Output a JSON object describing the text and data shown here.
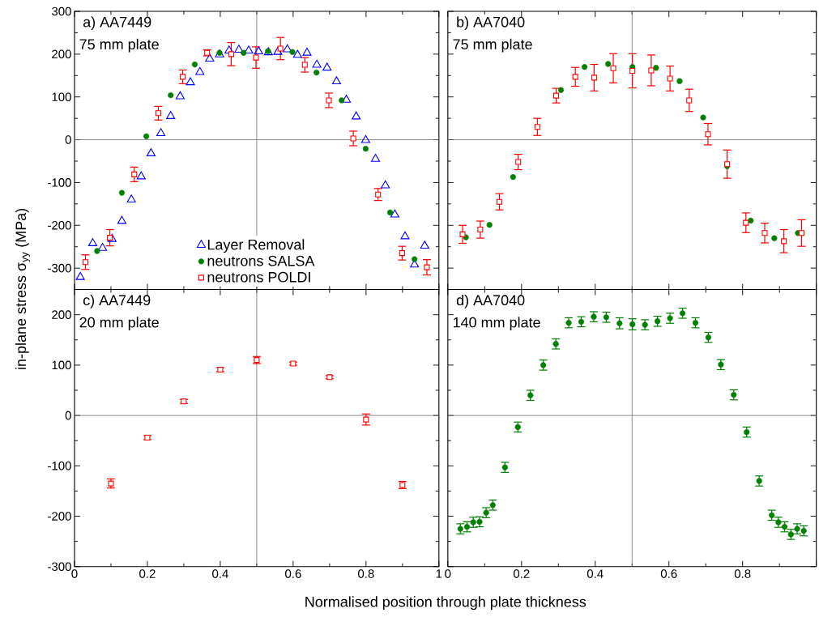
{
  "chart_data": [
    {
      "type": "scatter",
      "title": "a) AA7449",
      "subtitle": "75 mm plate",
      "ylabel": "in-plane stress σ$_{yy}$ (MPa)",
      "xlim": [
        0,
        1
      ],
      "ylim": [
        -350,
        300
      ],
      "xticks": [
        0,
        0.2,
        0.4,
        0.6,
        0.8,
        1
      ],
      "yticks": [
        -300,
        -200,
        -100,
        0,
        100,
        200,
        300
      ],
      "tick_labels": "y",
      "legend": "bottom",
      "ref_lines": [
        {
          "axis": "x",
          "value": 0.5,
          "color": "#707070"
        },
        {
          "axis": "y",
          "value": 0,
          "color": "#707070"
        }
      ],
      "series": [
        {
          "name": "Layer Removal",
          "color": "#0000ff",
          "marker": "triangle",
          "x": [
            0.016,
            0.05,
            0.077,
            0.103,
            0.13,
            0.156,
            0.183,
            0.21,
            0.237,
            0.264,
            0.29,
            0.318,
            0.344,
            0.371,
            0.398,
            0.424,
            0.451,
            0.478,
            0.505,
            0.532,
            0.558,
            0.584,
            0.612,
            0.638,
            0.665,
            0.693,
            0.719,
            0.746,
            0.773,
            0.799,
            0.826,
            0.853,
            0.879,
            0.907,
            0.933,
            0.961
          ],
          "values": [
            -321,
            -242,
            -253,
            -232,
            -190,
            -140,
            -86,
            -32,
            15,
            55,
            101,
            134,
            158,
            189,
            199,
            208,
            210,
            208,
            206,
            204,
            205,
            211,
            198,
            203,
            175,
            168,
            136,
            93,
            54,
            -1,
            -45,
            -107,
            -175,
            -226,
            -292,
            -248
          ]
        },
        {
          "name": "neutrons SALSA",
          "color": "#008000",
          "marker": "circle",
          "x": [
            0.062,
            0.13,
            0.197,
            0.264,
            0.33,
            0.398,
            0.464,
            0.531,
            0.598,
            0.664,
            0.733,
            0.799,
            0.866,
            0.933
          ],
          "values": [
            -260,
            -124,
            8,
            104,
            176,
            203,
            203,
            207,
            205,
            157,
            92,
            -21,
            -170,
            -279
          ]
        },
        {
          "name": "neutrons POLDI",
          "color": "#ff0000",
          "marker": "square",
          "x": [
            0.03,
            0.097,
            0.164,
            0.23,
            0.297,
            0.364,
            0.43,
            0.498,
            0.565,
            0.632,
            0.698,
            0.765,
            0.833,
            0.899,
            0.967
          ],
          "values": [
            -286,
            -229,
            -81,
            62,
            147,
            203,
            200,
            192,
            213,
            175,
            92,
            3,
            -128,
            -265,
            -298
          ],
          "errors": [
            17,
            19,
            17,
            16,
            16,
            7,
            27,
            25,
            26,
            17,
            17,
            17,
            14,
            16,
            18
          ]
        }
      ]
    },
    {
      "type": "scatter",
      "title": "b) AA7040",
      "subtitle": "75 mm plate",
      "xlim": [
        0,
        1
      ],
      "ylim": [
        -350,
        300
      ],
      "xticks": [
        0,
        0.2,
        0.4,
        0.6,
        0.8,
        1
      ],
      "yticks": [
        -300,
        -200,
        -100,
        0,
        100,
        200,
        300
      ],
      "tick_labels": false,
      "ref_lines": [
        {
          "axis": "x",
          "value": 0.5,
          "color": "#707070"
        },
        {
          "axis": "y",
          "value": 0,
          "color": "#707070"
        }
      ],
      "series": [
        {
          "color": "#008000",
          "marker": "circle",
          "x": [
            0.049,
            0.113,
            0.177,
            0.307,
            0.371,
            0.435,
            0.501,
            0.565,
            0.629,
            0.693,
            0.758,
            0.822,
            0.886,
            0.95
          ],
          "values": [
            -228,
            -199,
            -87,
            116,
            170,
            177,
            170,
            168,
            137,
            52,
            -62,
            -189,
            -230,
            -218
          ]
        },
        {
          "color": "#ff0000",
          "marker": "square",
          "x": [
            0.04,
            0.088,
            0.14,
            0.191,
            0.243,
            0.294,
            0.346,
            0.397,
            0.449,
            0.501,
            0.552,
            0.603,
            0.655,
            0.706,
            0.758,
            0.809,
            0.86,
            0.912,
            0.96
          ],
          "values": [
            -221,
            -210,
            -145,
            -52,
            30,
            103,
            147,
            145,
            167,
            161,
            162,
            143,
            92,
            13,
            -57,
            -194,
            -218,
            -237,
            -218
          ],
          "errors": [
            21,
            20,
            19,
            18,
            20,
            17,
            22,
            31,
            34,
            40,
            36,
            29,
            26,
            25,
            33,
            23,
            23,
            27,
            31
          ]
        }
      ]
    },
    {
      "type": "scatter",
      "title": "c) AA7449",
      "subtitle": "20 mm plate",
      "xlabel": "Normalised position through plate thickness",
      "xlim": [
        0,
        1
      ],
      "ylim": [
        -300,
        250
      ],
      "xticks": [
        0,
        0.2,
        0.4,
        0.6,
        0.8,
        1
      ],
      "yticks": [
        -300,
        -200,
        -100,
        0,
        100,
        200
      ],
      "ref_lines": [
        {
          "axis": "x",
          "value": 0.5,
          "color": "#707070"
        },
        {
          "axis": "y",
          "value": 0,
          "color": "#707070"
        }
      ],
      "series": [
        {
          "color": "#ff0000",
          "marker": "square",
          "x": [
            0.1,
            0.2,
            0.3,
            0.4,
            0.5,
            0.6,
            0.7,
            0.8,
            0.9
          ],
          "values": [
            -135,
            -44,
            28,
            91,
            110,
            103,
            76,
            -8,
            -138
          ],
          "errors": [
            9,
            4,
            4,
            4,
            7,
            3,
            3,
            11,
            7
          ]
        }
      ]
    },
    {
      "type": "scatter",
      "title": "d) AA7040",
      "subtitle": "140 mm plate",
      "xlim": [
        0,
        1
      ],
      "ylim": [
        -300,
        250
      ],
      "xticks": [
        0,
        0.2,
        0.4,
        0.6,
        0.8,
        {
          "value": 1,
          "label": null
        }
      ],
      "yticks": [
        -300,
        -200,
        -100,
        0,
        100,
        200
      ],
      "tick_labels": "x",
      "ref_lines": [
        {
          "axis": "x",
          "value": 0.5,
          "color": "#707070"
        },
        {
          "axis": "y",
          "value": 0,
          "color": "#707070"
        }
      ],
      "series": [
        {
          "color": "#008000",
          "marker": "circle",
          "x": [
            0.034,
            0.052,
            0.069,
            0.086,
            0.104,
            0.122,
            0.155,
            0.19,
            0.224,
            0.259,
            0.293,
            0.328,
            0.362,
            0.396,
            0.43,
            0.466,
            0.501,
            0.535,
            0.569,
            0.603,
            0.637,
            0.672,
            0.707,
            0.741,
            0.776,
            0.811,
            0.845,
            0.879,
            0.897,
            0.914,
            0.931,
            0.948,
            0.966
          ],
          "values": [
            -225,
            -221,
            -212,
            -211,
            -193,
            -178,
            -103,
            -23,
            40,
            100,
            142,
            184,
            186,
            196,
            195,
            183,
            181,
            180,
            187,
            193,
            203,
            184,
            155,
            101,
            41,
            -33,
            -130,
            -198,
            -212,
            -221,
            -236,
            -225,
            -229
          ],
          "errors": [
            10,
            10,
            10,
            10,
            10,
            10,
            10,
            10,
            10,
            10,
            10,
            10,
            10,
            10,
            10,
            11,
            11,
            10,
            10,
            10,
            10,
            10,
            10,
            10,
            10,
            10,
            10,
            10,
            10,
            10,
            10,
            10,
            10
          ]
        }
      ]
    }
  ]
}
